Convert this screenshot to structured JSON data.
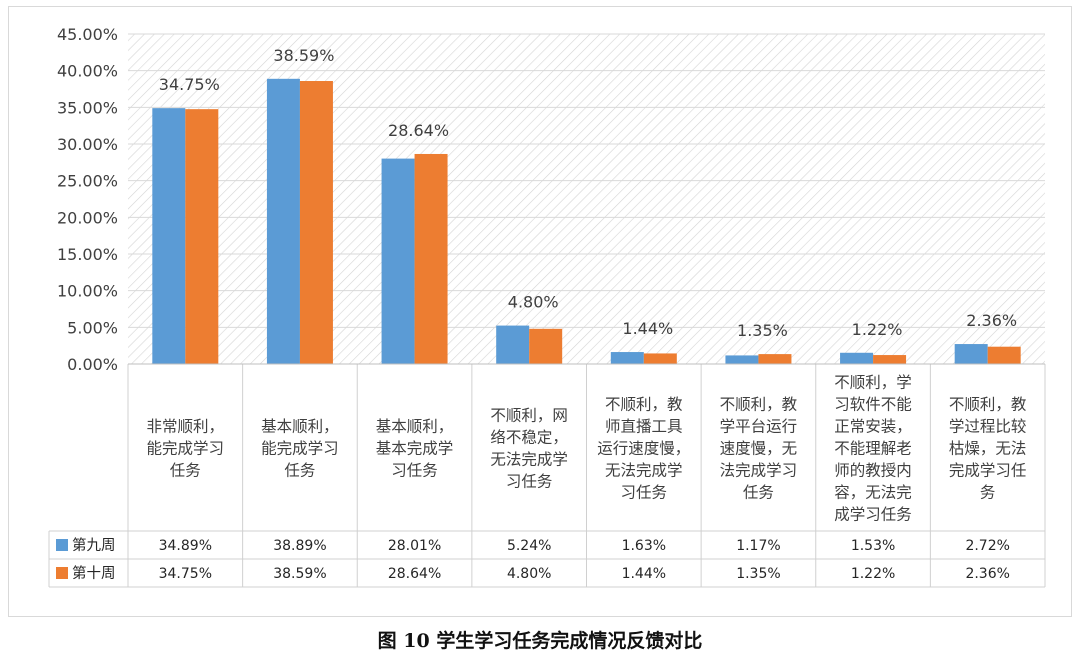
{
  "caption": "图 10  学生学习任务完成情况反馈对比",
  "chart_data": {
    "type": "bar",
    "ylim": [
      0,
      45
    ],
    "y_ticks": [
      "0.00%",
      "5.00%",
      "10.00%",
      "15.00%",
      "20.00%",
      "25.00%",
      "30.00%",
      "35.00%",
      "40.00%",
      "45.00%"
    ],
    "y_tick_values": [
      0,
      5,
      10,
      15,
      20,
      25,
      30,
      35,
      40,
      45
    ],
    "categories": [
      [
        "非常顺利，",
        "能完成学习",
        "任务"
      ],
      [
        "基本顺利，",
        "能完成学习",
        "任务"
      ],
      [
        "基本顺利，",
        "基本完成学",
        "习任务"
      ],
      [
        "不顺利，网",
        "络不稳定，",
        "无法完成学",
        "习任务"
      ],
      [
        "不顺利，教",
        "师直播工具",
        "运行速度慢，",
        "无法完成学",
        "习任务"
      ],
      [
        "不顺利，教",
        "学平台运行",
        "速度慢，无",
        "法完成学习",
        "任务"
      ],
      [
        "不顺利，学",
        "习软件不能",
        "正常安装，",
        "不能理解老",
        "师的教授内",
        "容，无法完",
        "成学习任务"
      ],
      [
        "不顺利，教",
        "学过程比较",
        "枯燥，无法",
        "完成学习任",
        "务"
      ]
    ],
    "series": [
      {
        "name": "第九周",
        "color": "#5b9bd5",
        "values": [
          34.89,
          38.89,
          28.01,
          5.24,
          1.63,
          1.17,
          1.53,
          2.72
        ],
        "labels": [
          "34.89%",
          "38.89%",
          "28.01%",
          "5.24%",
          "1.63%",
          "1.17%",
          "1.53%",
          "2.72%"
        ]
      },
      {
        "name": "第十周",
        "color": "#ed7d31",
        "values": [
          34.75,
          38.59,
          28.64,
          4.8,
          1.44,
          1.35,
          1.22,
          2.36
        ],
        "labels": [
          "34.75%",
          "38.59%",
          "28.64%",
          "4.80%",
          "1.44%",
          "1.35%",
          "1.22%",
          "2.36%"
        ]
      }
    ],
    "data_labels_series": "第十周",
    "grid": true,
    "legend": "data-table"
  }
}
